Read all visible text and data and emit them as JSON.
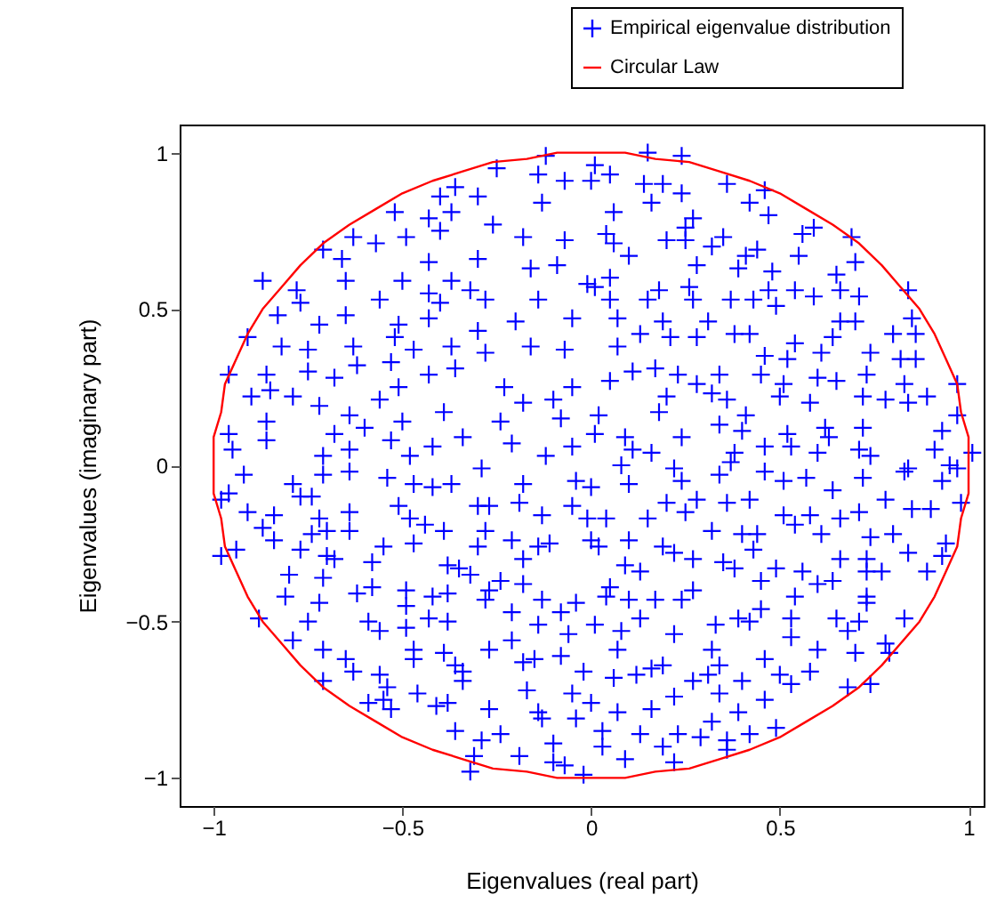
{
  "chart_data": {
    "type": "scatter",
    "xlabel": "Eigenvalues (real part)",
    "ylabel": "Eigenvalues (imaginary part)",
    "xlim": [
      -1.09,
      1.04
    ],
    "ylim": [
      -1.09,
      1.09
    ],
    "xticks": [
      {
        "value": -1,
        "label": "−1"
      },
      {
        "value": -0.5,
        "label": "−0.5"
      },
      0,
      0.5,
      1
    ],
    "yticks": [
      {
        "value": -1,
        "label": "−1"
      },
      {
        "value": -0.5,
        "label": "−0.5"
      },
      0,
      0.5,
      1
    ],
    "legend": "top right",
    "series": [
      {
        "name": "Empirical eigenvalue distribution",
        "color": "#0000ff",
        "marker": "cross",
        "x": [
          -0.12,
          -0.25,
          -0.14,
          -0.07,
          -0.36,
          -0.3,
          -0.4,
          -0.13,
          -0.52,
          -0.43,
          -0.37,
          -0.26,
          -0.4,
          -0.49,
          -0.63,
          -0.57,
          -0.18,
          -0.07,
          -0.71,
          -0.66,
          -0.43,
          -0.3,
          -0.16,
          -0.09,
          -0.87,
          -0.78,
          -0.65,
          -0.5,
          -0.37,
          -0.32,
          -0.01,
          -0.77,
          -0.56,
          -0.43,
          -0.28,
          -0.14,
          -0.4,
          -0.83,
          -0.72,
          -0.65,
          -0.51,
          -0.43,
          -0.2,
          -0.05,
          -0.91,
          -0.82,
          -0.75,
          -0.63,
          -0.52,
          -0.47,
          -0.37,
          -0.3,
          -0.28,
          -0.16,
          -0.07,
          -0.96,
          -0.86,
          -0.75,
          -0.68,
          -0.62,
          -0.53,
          -0.43,
          -0.36,
          -0.9,
          -0.85,
          -0.79,
          -0.51,
          -0.23,
          -0.05,
          -0.72,
          -0.56,
          -0.39,
          -0.18,
          -0.1,
          -0.64,
          -0.5,
          -0.24,
          -0.08,
          -0.86,
          -0.96,
          -0.68,
          -0.6,
          -0.34,
          -0.86,
          -0.95,
          -0.53,
          -0.42,
          -0.21,
          -0.71,
          -0.64,
          -0.48,
          -0.12,
          -0.05,
          0.15,
          0.24,
          0.01,
          0.05,
          0.0,
          0.14,
          0.19,
          0.36,
          0.16,
          0.24,
          0.46,
          0.42,
          0.06,
          0.47,
          0.27,
          0.25,
          0.59,
          0.56,
          0.69,
          0.04,
          0.06,
          0.2,
          0.25,
          0.35,
          0.32,
          0.1,
          0.44,
          0.41,
          0.55,
          0.7,
          0.28,
          0.39,
          0.48,
          0.65,
          0.05,
          0.01,
          0.18,
          0.26,
          0.47,
          0.54,
          0.66,
          0.84,
          0.05,
          0.15,
          0.27,
          0.37,
          0.43,
          0.59,
          0.71,
          0.49,
          0.07,
          0.19,
          0.31,
          0.66,
          0.7,
          0.85,
          0.13,
          0.21,
          0.28,
          0.38,
          0.42,
          0.54,
          0.64,
          0.8,
          0.86,
          0.07,
          0.46,
          0.52,
          0.61,
          0.74,
          0.82,
          0.86,
          0.17,
          0.11,
          0.05,
          0.23,
          0.34,
          0.45,
          0.51,
          0.6,
          0.65,
          0.73,
          0.97,
          0.83,
          0.28,
          0.2,
          0.32,
          0.36,
          0.5,
          0.58,
          0.72,
          0.78,
          0.84,
          0.89,
          0.18,
          0.02,
          0.41,
          0.97,
          0.01,
          0.34,
          0.4,
          0.62,
          0.72,
          0.93,
          0.09,
          0.24,
          0.52,
          0.53,
          0.11,
          0.16,
          0.46,
          0.38,
          0.63,
          0.6,
          0.71,
          0.74,
          0.91,
          1.01,
          0.97,
          0.84,
          -0.92,
          -0.79,
          -0.71,
          -0.64,
          -0.54,
          -0.47,
          -0.42,
          -0.37,
          -0.29,
          -0.18,
          -0.04,
          -0.96,
          -0.98,
          -0.77,
          -0.74,
          -0.91,
          -0.84,
          -0.72,
          -0.64,
          -0.51,
          -0.48,
          -0.44,
          -0.39,
          -0.3,
          -0.27,
          -0.19,
          -0.13,
          -0.05,
          -0.87,
          -0.74,
          -0.7,
          -0.64,
          -0.28,
          -0.01,
          -0.84,
          -0.47,
          -0.55,
          -0.3,
          -0.21,
          -0.14,
          -0.11,
          -0.98,
          -0.94,
          -0.77,
          -0.7,
          -0.68,
          -0.18,
          -0.58,
          -0.38,
          -0.35,
          -0.32,
          -0.8,
          -0.71,
          -0.24,
          -0.18,
          -0.81,
          -0.72,
          -0.62,
          -0.58,
          -0.49,
          -0.49,
          -0.42,
          -0.38,
          -0.28,
          -0.27,
          -0.21,
          -0.13,
          -0.04,
          -0.88,
          -0.75,
          -0.59,
          -0.56,
          -0.49,
          -0.43,
          -0.38,
          -0.14,
          -0.08,
          -0.06,
          -0.79,
          -0.71,
          -0.47,
          -0.47,
          -0.39,
          -0.36,
          -0.27,
          -0.21,
          -0.18,
          -0.15,
          -0.08,
          -0.65,
          -0.63,
          -0.56,
          -0.54,
          -0.34,
          -0.34,
          -0.71,
          -0.02,
          -0.17,
          -0.05,
          -0.46,
          -0.59,
          -0.55,
          -0.53,
          -0.41,
          -0.38,
          -0.27,
          -0.14,
          -0.13,
          -0.04,
          -0.36,
          -0.24,
          -0.29,
          -0.1,
          -0.31,
          -0.19,
          -0.1,
          -0.07,
          -0.32,
          -0.02,
          0.08,
          0.22,
          0.0,
          0.1,
          0.24,
          0.34,
          0.37,
          0.46,
          0.51,
          0.57,
          0.64,
          0.72,
          0.83,
          0.93,
          0.95,
          0.2,
          0.28,
          0.25,
          0.36,
          0.42,
          0.51,
          0.54,
          0.58,
          0.66,
          0.71,
          0.78,
          0.85,
          0.9,
          0.98,
          0.04,
          0.15,
          0.32,
          0.4,
          0.44,
          0.61,
          0.74,
          0.8,
          0.0,
          0.02,
          0.1,
          0.19,
          0.22,
          0.27,
          0.43,
          0.66,
          0.73,
          0.84,
          0.93,
          0.94,
          0.89,
          0.09,
          0.13,
          0.35,
          0.38,
          0.49,
          0.56,
          0.6,
          0.64,
          0.73,
          0.77,
          0.45,
          0.05,
          0.04,
          0.1,
          0.17,
          0.24,
          0.27,
          0.54,
          0.73,
          0.73,
          0.01,
          0.08,
          0.13,
          0.22,
          0.33,
          0.39,
          0.42,
          0.45,
          0.53,
          0.53,
          0.65,
          0.68,
          0.71,
          0.83,
          0.07,
          0.32,
          0.6,
          0.7,
          0.78,
          0.79,
          0.34,
          0.46,
          0.06,
          0.12,
          0.16,
          0.19,
          0.27,
          0.31,
          0.4,
          0.5,
          0.53,
          0.58,
          0.68,
          0.74,
          0.0,
          0.22,
          0.34,
          0.46,
          0.07,
          0.16,
          0.32,
          0.39,
          0.49,
          0.03,
          0.03,
          0.13,
          0.23,
          0.29,
          0.36,
          0.42,
          0.19,
          0.36,
          0.09,
          0.22
        ],
        "values": [
          0.99,
          0.95,
          0.93,
          0.91,
          0.89,
          0.86,
          0.86,
          0.84,
          0.81,
          0.79,
          0.81,
          0.77,
          0.75,
          0.73,
          0.73,
          0.71,
          0.73,
          0.72,
          0.69,
          0.66,
          0.65,
          0.66,
          0.63,
          0.64,
          0.59,
          0.56,
          0.59,
          0.59,
          0.59,
          0.56,
          0.58,
          0.52,
          0.53,
          0.55,
          0.53,
          0.53,
          0.52,
          0.48,
          0.45,
          0.48,
          0.45,
          0.47,
          0.46,
          0.47,
          0.41,
          0.38,
          0.37,
          0.38,
          0.41,
          0.37,
          0.38,
          0.43,
          0.36,
          0.38,
          0.37,
          0.29,
          0.29,
          0.3,
          0.28,
          0.32,
          0.33,
          0.29,
          0.31,
          0.22,
          0.24,
          0.22,
          0.25,
          0.25,
          0.25,
          0.19,
          0.21,
          0.17,
          0.2,
          0.21,
          0.16,
          0.14,
          0.14,
          0.15,
          0.14,
          0.1,
          0.1,
          0.12,
          0.09,
          0.08,
          0.05,
          0.08,
          0.06,
          0.07,
          0.03,
          0.05,
          0.03,
          0.03,
          0.06,
          1.0,
          0.99,
          0.96,
          0.93,
          0.91,
          0.9,
          0.9,
          0.9,
          0.84,
          0.87,
          0.88,
          0.84,
          0.81,
          0.8,
          0.79,
          0.76,
          0.76,
          0.74,
          0.73,
          0.74,
          0.71,
          0.72,
          0.72,
          0.73,
          0.7,
          0.67,
          0.69,
          0.67,
          0.67,
          0.65,
          0.64,
          0.63,
          0.62,
          0.61,
          0.6,
          0.57,
          0.56,
          0.57,
          0.56,
          0.56,
          0.56,
          0.56,
          0.53,
          0.53,
          0.53,
          0.53,
          0.53,
          0.54,
          0.54,
          0.51,
          0.47,
          0.46,
          0.46,
          0.46,
          0.46,
          0.47,
          0.42,
          0.41,
          0.41,
          0.42,
          0.42,
          0.39,
          0.41,
          0.42,
          0.42,
          0.38,
          0.35,
          0.34,
          0.36,
          0.36,
          0.34,
          0.34,
          0.31,
          0.3,
          0.27,
          0.29,
          0.29,
          0.29,
          0.26,
          0.28,
          0.27,
          0.29,
          0.26,
          0.26,
          0.26,
          0.22,
          0.23,
          0.21,
          0.22,
          0.2,
          0.22,
          0.21,
          0.2,
          0.22,
          0.17,
          0.16,
          0.16,
          0.16,
          0.1,
          0.13,
          0.11,
          0.12,
          0.12,
          0.11,
          0.09,
          0.09,
          0.1,
          0.06,
          0.05,
          0.04,
          0.06,
          0.04,
          0.09,
          0.04,
          0.05,
          0.03,
          0.05,
          0.04,
          -0.01,
          -0.01,
          -0.03,
          -0.06,
          -0.03,
          -0.02,
          -0.04,
          -0.06,
          -0.07,
          -0.06,
          -0.01,
          -0.06,
          -0.05,
          -0.09,
          -0.11,
          -0.1,
          -0.1,
          -0.15,
          -0.16,
          -0.17,
          -0.15,
          -0.13,
          -0.17,
          -0.19,
          -0.21,
          -0.13,
          -0.13,
          -0.12,
          -0.16,
          -0.13,
          -0.2,
          -0.22,
          -0.21,
          -0.21,
          -0.21,
          -0.17,
          -0.24,
          -0.25,
          -0.26,
          -0.26,
          -0.24,
          -0.26,
          -0.25,
          -0.29,
          -0.27,
          -0.27,
          -0.29,
          -0.3,
          -0.3,
          -0.31,
          -0.32,
          -0.33,
          -0.35,
          -0.35,
          -0.36,
          -0.37,
          -0.38,
          -0.42,
          -0.44,
          -0.41,
          -0.39,
          -0.4,
          -0.45,
          -0.42,
          -0.41,
          -0.43,
          -0.4,
          -0.47,
          -0.43,
          -0.44,
          -0.49,
          -0.5,
          -0.5,
          -0.53,
          -0.52,
          -0.49,
          -0.5,
          -0.51,
          -0.47,
          -0.54,
          -0.56,
          -0.59,
          -0.59,
          -0.62,
          -0.6,
          -0.64,
          -0.59,
          -0.56,
          -0.63,
          -0.62,
          -0.61,
          -0.62,
          -0.66,
          -0.67,
          -0.71,
          -0.66,
          -0.69,
          -0.69,
          -0.66,
          -0.72,
          -0.73,
          -0.73,
          -0.76,
          -0.75,
          -0.78,
          -0.77,
          -0.76,
          -0.78,
          -0.79,
          -0.81,
          -0.81,
          -0.85,
          -0.86,
          -0.88,
          -0.89,
          -0.93,
          -0.93,
          -0.95,
          -0.96,
          -0.98,
          -0.99,
          0.0,
          -0.01,
          -0.07,
          -0.06,
          -0.05,
          -0.03,
          0.01,
          -0.02,
          -0.05,
          -0.04,
          -0.08,
          -0.04,
          -0.02,
          -0.05,
          0.0,
          -0.12,
          -0.11,
          -0.15,
          -0.12,
          -0.11,
          -0.16,
          -0.19,
          -0.16,
          -0.17,
          -0.15,
          -0.11,
          -0.14,
          -0.14,
          -0.12,
          -0.17,
          -0.17,
          -0.21,
          -0.22,
          -0.22,
          -0.22,
          -0.23,
          -0.22,
          -0.24,
          -0.26,
          -0.24,
          -0.26,
          -0.28,
          -0.3,
          -0.27,
          -0.3,
          -0.3,
          -0.28,
          -0.29,
          -0.25,
          -0.34,
          -0.32,
          -0.34,
          -0.31,
          -0.33,
          -0.33,
          -0.34,
          -0.38,
          -0.37,
          -0.34,
          -0.34,
          -0.37,
          -0.39,
          -0.42,
          -0.43,
          -0.43,
          -0.43,
          -0.4,
          -0.42,
          -0.42,
          -0.44,
          -0.51,
          -0.53,
          -0.49,
          -0.54,
          -0.51,
          -0.49,
          -0.5,
          -0.46,
          -0.49,
          -0.55,
          -0.49,
          -0.53,
          -0.5,
          -0.49,
          -0.59,
          -0.59,
          -0.59,
          -0.6,
          -0.57,
          -0.6,
          -0.64,
          -0.62,
          -0.68,
          -0.67,
          -0.65,
          -0.64,
          -0.69,
          -0.67,
          -0.69,
          -0.67,
          -0.7,
          -0.66,
          -0.71,
          -0.7,
          -0.76,
          -0.74,
          -0.73,
          -0.75,
          -0.79,
          -0.78,
          -0.82,
          -0.79,
          -0.84,
          -0.85,
          -0.9,
          -0.86,
          -0.86,
          -0.87,
          -0.88,
          -0.86,
          -0.9,
          -0.91,
          -0.94,
          -0.95
        ]
      },
      {
        "name": "Circular Law",
        "color": "#ff0000",
        "type": "line",
        "x": [
          -1,
          -1,
          -0.98,
          -0.97,
          -0.94,
          -0.91,
          -0.87,
          -0.82,
          -0.77,
          -0.71,
          -0.64,
          -0.57,
          -0.5,
          -0.42,
          -0.34,
          -0.26,
          -0.17,
          -0.09,
          0,
          0.09,
          0.17,
          0.26,
          0.34,
          0.42,
          0.5,
          0.57,
          0.64,
          0.71,
          0.77,
          0.82,
          0.87,
          0.91,
          0.94,
          0.97,
          0.98,
          1,
          1,
          null,
          -1,
          -1,
          -0.98,
          -0.97,
          -0.94,
          -0.91,
          -0.87,
          -0.82,
          -0.77,
          -0.71,
          -0.64,
          -0.57,
          -0.5,
          -0.42,
          -0.34,
          -0.26,
          -0.17,
          -0.09,
          0,
          0.09,
          0.17,
          0.26,
          0.34,
          0.42,
          0.5,
          0.57,
          0.64,
          0.71,
          0.77,
          0.82,
          0.87,
          0.91,
          0.94,
          0.97,
          0.98,
          1,
          1
        ],
        "values": [
          0,
          0.09,
          0.17,
          0.26,
          0.34,
          0.42,
          0.5,
          0.57,
          0.64,
          0.71,
          0.77,
          0.82,
          0.87,
          0.91,
          0.94,
          0.97,
          0.98,
          1,
          1,
          1,
          0.98,
          0.97,
          0.94,
          0.91,
          0.87,
          0.82,
          0.77,
          0.71,
          0.64,
          0.57,
          0.5,
          0.42,
          0.34,
          0.26,
          0.17,
          0.09,
          0,
          null,
          0,
          -0.09,
          -0.17,
          -0.26,
          -0.34,
          -0.42,
          -0.5,
          -0.57,
          -0.64,
          -0.71,
          -0.77,
          -0.82,
          -0.87,
          -0.91,
          -0.94,
          -0.97,
          -0.98,
          -1,
          -1,
          -1,
          -0.98,
          -0.97,
          -0.94,
          -0.91,
          -0.87,
          -0.82,
          -0.77,
          -0.71,
          -0.64,
          -0.57,
          -0.5,
          -0.42,
          -0.34,
          -0.26,
          -0.17,
          -0.09,
          0
        ]
      }
    ]
  }
}
